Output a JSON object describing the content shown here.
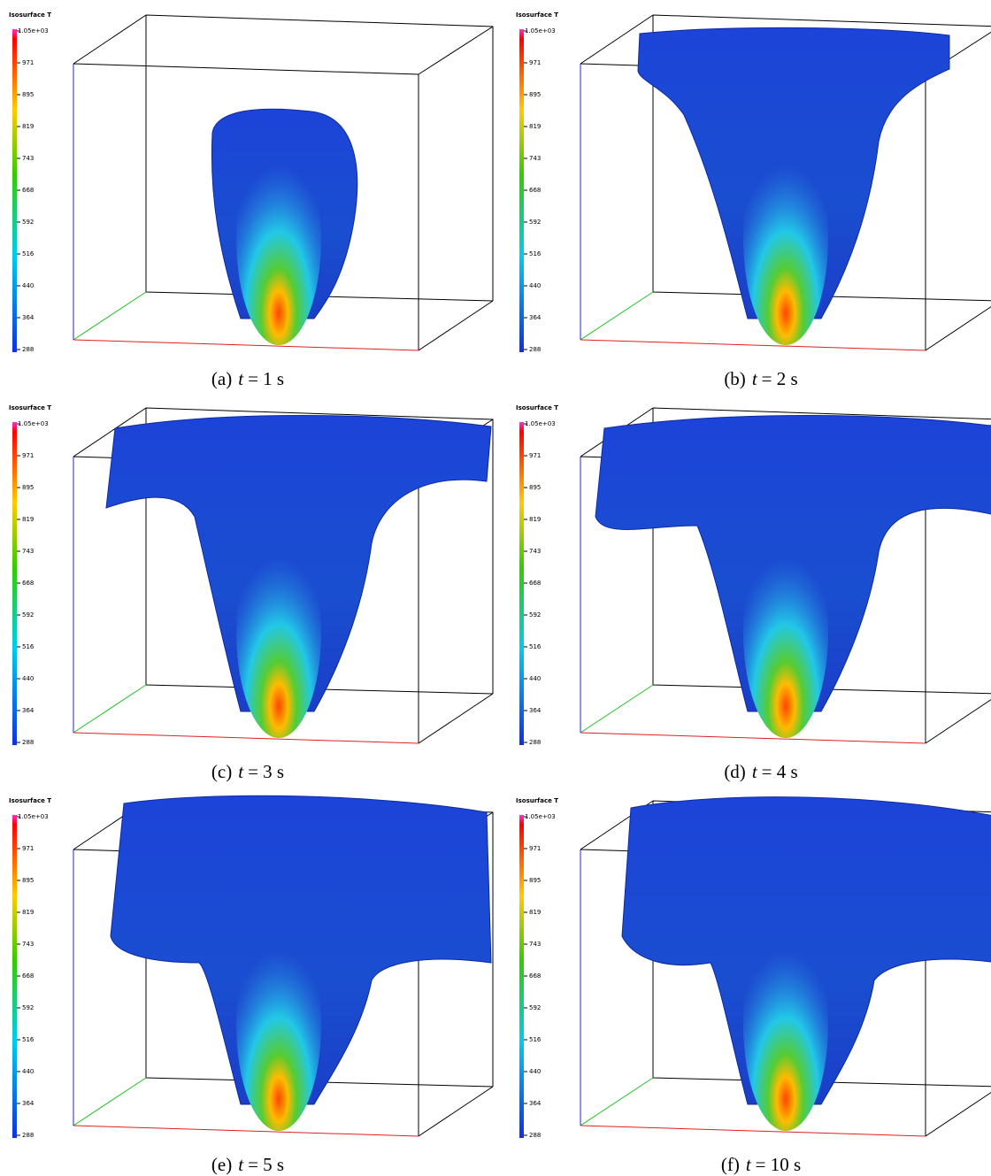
{
  "panels": [
    {
      "colorbar": {
        "title": "Isosurface T",
        "ticks": [
          "1.05e+03",
          "971",
          "895",
          "819",
          "743",
          "668",
          "592",
          "516",
          "440",
          "364",
          "288"
        ]
      },
      "caption": {
        "tag": "(a)",
        "variable": "t",
        "rest": "= 1 s"
      }
    },
    {
      "colorbar": {
        "title": "Isosurface T",
        "ticks": [
          "1.05e+03",
          "971",
          "895",
          "819",
          "743",
          "668",
          "592",
          "516",
          "440",
          "364",
          "288"
        ]
      },
      "caption": {
        "tag": "(b)",
        "variable": "t",
        "rest": "= 2 s"
      }
    },
    {
      "colorbar": {
        "title": "Isosurface T",
        "ticks": [
          "1.05e+03",
          "971",
          "895",
          "819",
          "743",
          "668",
          "592",
          "516",
          "440",
          "364",
          "288"
        ]
      },
      "caption": {
        "tag": "(c)",
        "variable": "t",
        "rest": "= 3 s"
      }
    },
    {
      "colorbar": {
        "title": "Isosurface T",
        "ticks": [
          "1.05e+03",
          "971",
          "895",
          "819",
          "743",
          "668",
          "592",
          "516",
          "440",
          "364",
          "288"
        ]
      },
      "caption": {
        "tag": "(d)",
        "variable": "t",
        "rest": "= 4 s"
      }
    },
    {
      "colorbar": {
        "title": "Isosurface T",
        "ticks": [
          "1.05e+03",
          "971",
          "895",
          "819",
          "743",
          "668",
          "592",
          "516",
          "440",
          "364",
          "288"
        ]
      },
      "caption": {
        "tag": "(e)",
        "variable": "t",
        "rest": "= 5 s"
      }
    },
    {
      "colorbar": {
        "title": "Isosurface T",
        "ticks": [
          "1.05e+03",
          "971",
          "895",
          "819",
          "743",
          "668",
          "592",
          "516",
          "440",
          "364",
          "288"
        ]
      },
      "caption": {
        "tag": "(f)",
        "variable": "t",
        "rest": "= 10 s"
      }
    }
  ]
}
